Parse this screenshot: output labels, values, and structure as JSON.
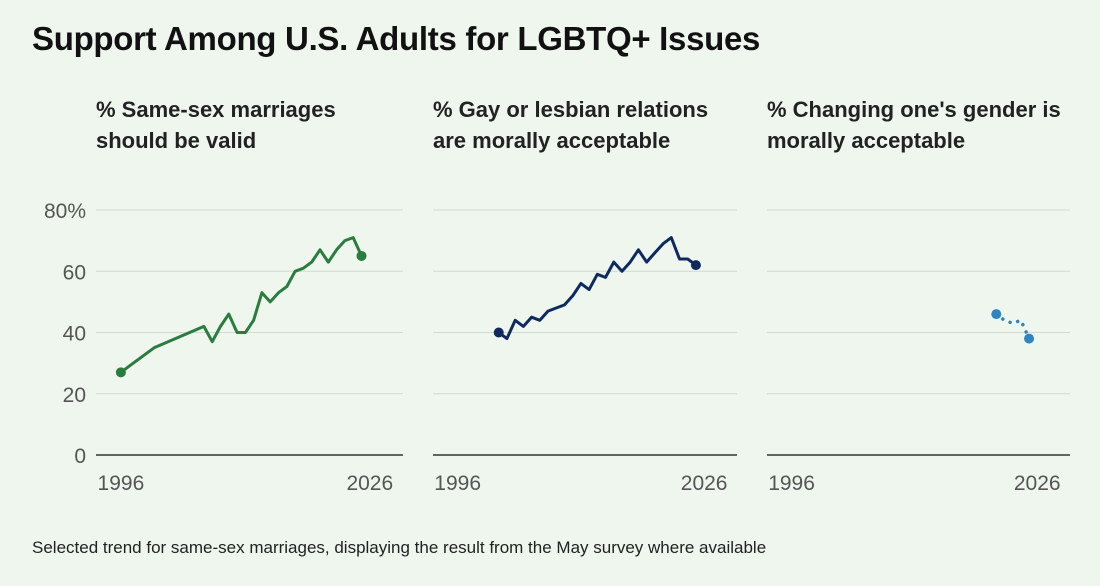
{
  "title": "Support Among U.S. Adults for LGBTQ+ Issues",
  "footnote": "Selected trend for same-sex marriages, displaying the result from the May survey where available",
  "chart_data": [
    {
      "type": "line",
      "title": "% Same-sex marriages should be valid",
      "color": "#2a7d3e",
      "line_style": "solid",
      "xlim": [
        1993,
        2030
      ],
      "ylim": [
        0,
        80
      ],
      "y_ticks": [
        0,
        20,
        40,
        60,
        80
      ],
      "y_tick_labels": [
        "0",
        "20",
        "40",
        "60",
        "80%"
      ],
      "x_ticks": [
        1996,
        2026
      ],
      "x_tick_labels": [
        "1996",
        "2026"
      ],
      "grid": true,
      "x": [
        1996,
        2000,
        2006,
        2007,
        2008,
        2009,
        2010,
        2011,
        2012,
        2013,
        2014,
        2015,
        2016,
        2017,
        2018,
        2019,
        2020,
        2021,
        2022,
        2023,
        2024,
        2025
      ],
      "y": [
        27,
        35,
        42,
        37,
        42,
        46,
        40,
        40,
        44,
        53,
        50,
        53,
        55,
        60,
        61,
        63,
        67,
        63,
        67,
        70,
        71,
        65
      ],
      "endpoint_markers": true
    },
    {
      "type": "line",
      "title": "% Gay or lesbian relations are morally acceptable",
      "color": "#0f2a5e",
      "line_style": "solid",
      "xlim": [
        1993,
        2030
      ],
      "ylim": [
        0,
        80
      ],
      "y_ticks": [
        0,
        20,
        40,
        60,
        80
      ],
      "x_ticks": [
        1996,
        2026
      ],
      "x_tick_labels": [
        "1996",
        "2026"
      ],
      "grid": true,
      "x": [
        2001,
        2002,
        2003,
        2004,
        2005,
        2006,
        2007,
        2008,
        2009,
        2010,
        2011,
        2012,
        2013,
        2014,
        2015,
        2016,
        2017,
        2018,
        2019,
        2020,
        2021,
        2022,
        2023,
        2024,
        2025
      ],
      "y": [
        40,
        38,
        44,
        42,
        45,
        44,
        47,
        48,
        49,
        52,
        56,
        54,
        59,
        58,
        63,
        60,
        63,
        67,
        63,
        66,
        69,
        71,
        64,
        64,
        62
      ],
      "endpoint_markers": true
    },
    {
      "type": "line",
      "title": "% Changing one's gender is morally acceptable",
      "color": "#2e86c1",
      "line_style": "dotted",
      "xlim": [
        1993,
        2030
      ],
      "ylim": [
        0,
        80
      ],
      "y_ticks": [
        0,
        20,
        40,
        60,
        80
      ],
      "x_ticks": [
        1996,
        2026
      ],
      "x_tick_labels": [
        "1996",
        "2026"
      ],
      "grid": true,
      "x": [
        2021,
        2022,
        2023,
        2024,
        2025
      ],
      "y": [
        46,
        44,
        43,
        44,
        38
      ],
      "endpoint_markers": true
    }
  ]
}
